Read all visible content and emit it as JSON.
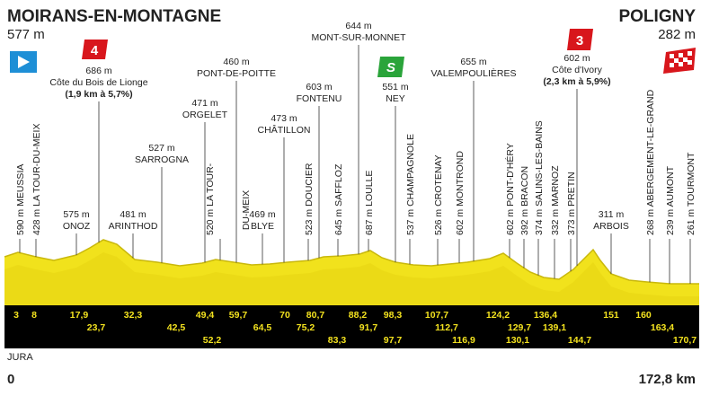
{
  "header": {
    "start": "MOIRANS-EN-MONTAGNE",
    "start_alt": "577 m",
    "finish": "POLIGNY",
    "finish_alt": "282 m"
  },
  "badges": [
    "4",
    "S",
    "3"
  ],
  "places": [
    {
      "lines": [
        "590 m MEUSSIA"
      ]
    },
    {
      "lines": [
        "428 m LA TOUR-DU-MEIX"
      ]
    },
    {
      "lines": [
        "575 m",
        "ONOZ"
      ]
    },
    {
      "lines": [
        "686 m",
        "Côte du Bois de Lionge",
        "(1,9 km à 5,7%)"
      ]
    },
    {
      "lines": [
        "481 m",
        "ARINTHOD"
      ]
    },
    {
      "lines": [
        "527 m",
        "SARROGNA"
      ]
    },
    {
      "lines": [
        "471 m",
        "ORGELET"
      ]
    },
    {
      "lines": [
        "520 m LA TOUR-",
        "DU-MEIX"
      ]
    },
    {
      "lines": [
        "460 m",
        "PONT-DE-POITTE"
      ]
    },
    {
      "lines": [
        "469 m",
        "BLYE"
      ]
    },
    {
      "lines": [
        "473 m",
        "CHÂTILLON"
      ]
    },
    {
      "lines": [
        "523 m DOUCIER"
      ]
    },
    {
      "lines": [
        "603 m",
        "FONTENU"
      ]
    },
    {
      "lines": [
        "645 m SAFFLOZ"
      ]
    },
    {
      "lines": [
        "644 m",
        "MONT-SUR-MONNET"
      ]
    },
    {
      "lines": [
        "687 m LOULLE"
      ]
    },
    {
      "lines": [
        "551 m",
        "NEY"
      ]
    },
    {
      "lines": [
        "537 m CHAMPAGNOLE"
      ]
    },
    {
      "lines": [
        "526 m CROTENAY"
      ]
    },
    {
      "lines": [
        "602 m MONTROND"
      ]
    },
    {
      "lines": [
        "655 m",
        "VALEMPOULIÈRES"
      ]
    },
    {
      "lines": [
        "602 m PONT-D'HÉRY"
      ]
    },
    {
      "lines": [
        "392 m BRACON"
      ]
    },
    {
      "lines": [
        "374 m SALINS-LES-BAINS"
      ]
    },
    {
      "lines": [
        "332 m MARNOZ"
      ]
    },
    {
      "lines": [
        "373 m PRETIN"
      ]
    },
    {
      "lines": [
        "602 m",
        "Côte d'Ivory",
        "(2,3 km à 5,9%)"
      ]
    },
    {
      "lines": [
        "311 m",
        "ARBOIS"
      ]
    },
    {
      "lines": [
        "268 m ABERGEMENT-LE-GRAND"
      ]
    },
    {
      "lines": [
        "239 m AUMONT"
      ]
    },
    {
      "lines": [
        "261 m TOURMONT"
      ]
    }
  ],
  "km_markers": [
    "3",
    "8",
    "17,9",
    "23,7",
    "32,3",
    "42,5",
    "49,4",
    "52,2",
    "59,7",
    "64,5",
    "70",
    "75,2",
    "80,7",
    "83,3",
    "88,2",
    "91,7",
    "97,7",
    "98,3",
    "107,7",
    "112,7",
    "116,9",
    "124,2",
    "129,7",
    "130,1",
    "136,4",
    "139,1",
    "144,7",
    "151",
    "160",
    "163,4",
    "170,7"
  ],
  "footer": {
    "region": "JURA",
    "start_km": "0",
    "total": "172,8 km"
  }
}
